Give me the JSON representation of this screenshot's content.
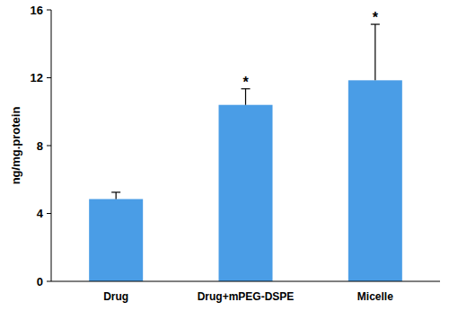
{
  "chart_data": {
    "type": "bar",
    "y_label": "ng/mg.protein",
    "categories": [
      "Drug",
      "Drug+mPEG-DSPE",
      "Micelle"
    ],
    "values": [
      4.85,
      10.4,
      11.85
    ],
    "errors": [
      0.4,
      0.95,
      3.3
    ],
    "annotations": [
      null,
      "*",
      "*"
    ],
    "color": "#4a9de6",
    "ylim": [
      0,
      16
    ],
    "yticks": [
      0,
      4,
      8,
      12,
      16
    ],
    "grid": false
  }
}
